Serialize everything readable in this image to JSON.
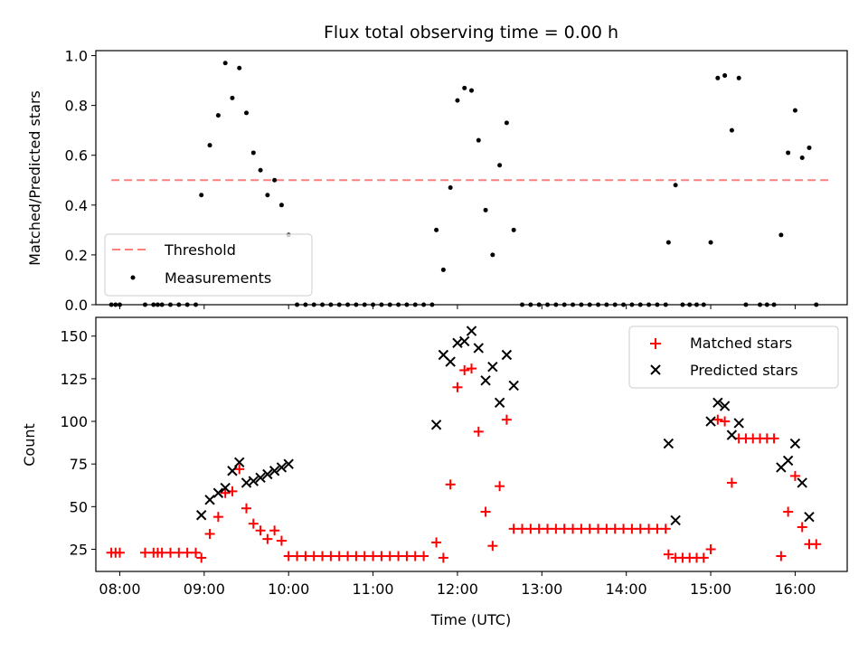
{
  "chart_data": {
    "type": "scatter",
    "title": "Flux total observing time = 0.00 h",
    "xlabel": "Time (UTC)",
    "x_tick_labels": [
      "08:00",
      "09:00",
      "10:00",
      "11:00",
      "12:00",
      "13:00",
      "14:00",
      "15:00",
      "16:00"
    ],
    "x_ticks": [
      "08:00",
      "09:00",
      "10:00",
      "11:00",
      "12:00",
      "13:00",
      "14:00",
      "15:00",
      "16:00"
    ],
    "xlim": [
      "07:43",
      "16:37"
    ],
    "top_panel": {
      "ylabel": "Matched/Predicted stars",
      "ylim": [
        0,
        1.02
      ],
      "y_ticks": [
        0.0,
        0.2,
        0.4,
        0.6,
        0.8,
        1.0
      ],
      "y_tick_labels": [
        "0.0",
        "0.2",
        "0.4",
        "0.6",
        "0.8",
        "1.0"
      ],
      "legend_location": "lower-left",
      "threshold": {
        "name": "Threshold",
        "color": "#ff7f7f",
        "y": 0.5,
        "x": [
          "07:54",
          "16:24"
        ]
      },
      "measurements": {
        "name": "Measurements",
        "color": "#000000",
        "points": [
          [
            "07:54",
            0
          ],
          [
            "07:57",
            0
          ],
          [
            "08:00",
            0
          ],
          [
            "08:18",
            0
          ],
          [
            "08:24",
            0
          ],
          [
            "08:27",
            0
          ],
          [
            "08:30",
            0
          ],
          [
            "08:36",
            0
          ],
          [
            "08:42",
            0
          ],
          [
            "08:48",
            0
          ],
          [
            "08:54",
            0
          ],
          [
            "08:58",
            0.44
          ],
          [
            "09:04",
            0.64
          ],
          [
            "09:10",
            0.76
          ],
          [
            "09:15",
            0.97
          ],
          [
            "09:20",
            0.83
          ],
          [
            "09:25",
            0.95
          ],
          [
            "09:30",
            0.77
          ],
          [
            "09:35",
            0.61
          ],
          [
            "09:40",
            0.54
          ],
          [
            "09:45",
            0.44
          ],
          [
            "09:50",
            0.5
          ],
          [
            "09:55",
            0.4
          ],
          [
            "10:00",
            0.28
          ],
          [
            "10:06",
            0
          ],
          [
            "10:12",
            0
          ],
          [
            "10:18",
            0
          ],
          [
            "10:24",
            0
          ],
          [
            "10:30",
            0
          ],
          [
            "10:36",
            0
          ],
          [
            "10:42",
            0
          ],
          [
            "10:48",
            0
          ],
          [
            "10:54",
            0
          ],
          [
            "11:00",
            0
          ],
          [
            "11:06",
            0
          ],
          [
            "11:12",
            0
          ],
          [
            "11:18",
            0
          ],
          [
            "11:24",
            0
          ],
          [
            "11:30",
            0
          ],
          [
            "11:36",
            0
          ],
          [
            "11:42",
            0
          ],
          [
            "11:45",
            0.3
          ],
          [
            "11:50",
            0.14
          ],
          [
            "11:55",
            0.47
          ],
          [
            "12:00",
            0.82
          ],
          [
            "12:05",
            0.87
          ],
          [
            "12:10",
            0.86
          ],
          [
            "12:15",
            0.66
          ],
          [
            "12:20",
            0.38
          ],
          [
            "12:25",
            0.2
          ],
          [
            "12:30",
            0.56
          ],
          [
            "12:35",
            0.73
          ],
          [
            "12:40",
            0.3
          ],
          [
            "12:46",
            0
          ],
          [
            "12:52",
            0
          ],
          [
            "12:58",
            0
          ],
          [
            "13:04",
            0
          ],
          [
            "13:10",
            0
          ],
          [
            "13:16",
            0
          ],
          [
            "13:22",
            0
          ],
          [
            "13:28",
            0
          ],
          [
            "13:34",
            0
          ],
          [
            "13:40",
            0
          ],
          [
            "13:46",
            0
          ],
          [
            "13:52",
            0
          ],
          [
            "13:58",
            0
          ],
          [
            "14:04",
            0
          ],
          [
            "14:10",
            0
          ],
          [
            "14:16",
            0
          ],
          [
            "14:22",
            0
          ],
          [
            "14:28",
            0
          ],
          [
            "14:30",
            0.25
          ],
          [
            "14:35",
            0.48
          ],
          [
            "14:40",
            0
          ],
          [
            "14:45",
            0
          ],
          [
            "14:50",
            0
          ],
          [
            "14:55",
            0
          ],
          [
            "15:00",
            0.25
          ],
          [
            "15:05",
            0.91
          ],
          [
            "15:10",
            0.92
          ],
          [
            "15:15",
            0.7
          ],
          [
            "15:20",
            0.91
          ],
          [
            "15:25",
            0
          ],
          [
            "15:35",
            0
          ],
          [
            "15:40",
            0
          ],
          [
            "15:45",
            0
          ],
          [
            "15:50",
            0.28
          ],
          [
            "15:55",
            0.61
          ],
          [
            "16:00",
            0.78
          ],
          [
            "16:05",
            0.59
          ],
          [
            "16:10",
            0.63
          ],
          [
            "16:15",
            0
          ]
        ]
      }
    },
    "bottom_panel": {
      "ylabel": "Count",
      "ylim": [
        12,
        161
      ],
      "y_ticks": [
        25,
        50,
        75,
        100,
        125,
        150
      ],
      "y_tick_labels": [
        "25",
        "50",
        "75",
        "100",
        "125",
        "150"
      ],
      "legend_location": "upper-right",
      "series": [
        {
          "name": "Matched stars",
          "marker": "plus",
          "color": "#ff0000",
          "points": [
            [
              "07:54",
              23
            ],
            [
              "07:57",
              23
            ],
            [
              "08:00",
              23
            ],
            [
              "08:18",
              23
            ],
            [
              "08:24",
              23
            ],
            [
              "08:27",
              23
            ],
            [
              "08:30",
              23
            ],
            [
              "08:36",
              23
            ],
            [
              "08:42",
              23
            ],
            [
              "08:48",
              23
            ],
            [
              "08:54",
              23
            ],
            [
              "08:58",
              20
            ],
            [
              "09:04",
              34
            ],
            [
              "09:10",
              44
            ],
            [
              "09:15",
              58
            ],
            [
              "09:20",
              59
            ],
            [
              "09:25",
              72
            ],
            [
              "09:30",
              49
            ],
            [
              "09:35",
              40
            ],
            [
              "09:40",
              36
            ],
            [
              "09:45",
              31
            ],
            [
              "09:50",
              36
            ],
            [
              "09:55",
              30
            ],
            [
              "10:00",
              21
            ],
            [
              "10:06",
              21
            ],
            [
              "10:12",
              21
            ],
            [
              "10:18",
              21
            ],
            [
              "10:24",
              21
            ],
            [
              "10:30",
              21
            ],
            [
              "10:36",
              21
            ],
            [
              "10:42",
              21
            ],
            [
              "10:48",
              21
            ],
            [
              "10:54",
              21
            ],
            [
              "11:00",
              21
            ],
            [
              "11:06",
              21
            ],
            [
              "11:12",
              21
            ],
            [
              "11:18",
              21
            ],
            [
              "11:24",
              21
            ],
            [
              "11:30",
              21
            ],
            [
              "11:36",
              21
            ],
            [
              "11:45",
              29
            ],
            [
              "11:50",
              20
            ],
            [
              "11:55",
              63
            ],
            [
              "12:00",
              120
            ],
            [
              "12:05",
              130
            ],
            [
              "12:10",
              131
            ],
            [
              "12:15",
              94
            ],
            [
              "12:20",
              47
            ],
            [
              "12:25",
              27
            ],
            [
              "12:30",
              62
            ],
            [
              "12:35",
              101
            ],
            [
              "12:40",
              37
            ],
            [
              "12:46",
              37
            ],
            [
              "12:52",
              37
            ],
            [
              "12:58",
              37
            ],
            [
              "13:04",
              37
            ],
            [
              "13:10",
              37
            ],
            [
              "13:16",
              37
            ],
            [
              "13:22",
              37
            ],
            [
              "13:28",
              37
            ],
            [
              "13:34",
              37
            ],
            [
              "13:40",
              37
            ],
            [
              "13:46",
              37
            ],
            [
              "13:52",
              37
            ],
            [
              "13:58",
              37
            ],
            [
              "14:04",
              37
            ],
            [
              "14:10",
              37
            ],
            [
              "14:16",
              37
            ],
            [
              "14:22",
              37
            ],
            [
              "14:28",
              37
            ],
            [
              "14:30",
              22
            ],
            [
              "14:35",
              20
            ],
            [
              "14:40",
              20
            ],
            [
              "14:45",
              20
            ],
            [
              "14:50",
              20
            ],
            [
              "14:55",
              20
            ],
            [
              "15:00",
              25
            ],
            [
              "15:05",
              101
            ],
            [
              "15:10",
              100
            ],
            [
              "15:15",
              64
            ],
            [
              "15:20",
              90
            ],
            [
              "15:25",
              90
            ],
            [
              "15:30",
              90
            ],
            [
              "15:35",
              90
            ],
            [
              "15:40",
              90
            ],
            [
              "15:45",
              90
            ],
            [
              "15:50",
              21
            ],
            [
              "15:55",
              47
            ],
            [
              "16:00",
              68
            ],
            [
              "16:05",
              38
            ],
            [
              "16:10",
              28
            ],
            [
              "16:15",
              28
            ]
          ]
        },
        {
          "name": "Predicted stars",
          "marker": "x",
          "color": "#000000",
          "points": [
            [
              "08:58",
              45
            ],
            [
              "09:04",
              54
            ],
            [
              "09:10",
              58
            ],
            [
              "09:15",
              61
            ],
            [
              "09:20",
              71
            ],
            [
              "09:25",
              76
            ],
            [
              "09:30",
              64
            ],
            [
              "09:35",
              65
            ],
            [
              "09:40",
              67
            ],
            [
              "09:45",
              69
            ],
            [
              "09:50",
              71
            ],
            [
              "09:55",
              73
            ],
            [
              "10:00",
              75
            ],
            [
              "11:45",
              98
            ],
            [
              "11:50",
              139
            ],
            [
              "11:55",
              135
            ],
            [
              "12:00",
              146
            ],
            [
              "12:05",
              147
            ],
            [
              "12:10",
              153
            ],
            [
              "12:15",
              143
            ],
            [
              "12:20",
              124
            ],
            [
              "12:25",
              132
            ],
            [
              "12:30",
              111
            ],
            [
              "12:35",
              139
            ],
            [
              "12:40",
              121
            ],
            [
              "14:30",
              87
            ],
            [
              "14:35",
              42
            ],
            [
              "15:00",
              100
            ],
            [
              "15:05",
              111
            ],
            [
              "15:10",
              109
            ],
            [
              "15:15",
              92
            ],
            [
              "15:20",
              99
            ],
            [
              "15:50",
              73
            ],
            [
              "15:55",
              77
            ],
            [
              "16:00",
              87
            ],
            [
              "16:05",
              64
            ],
            [
              "16:10",
              44
            ]
          ]
        }
      ]
    }
  }
}
